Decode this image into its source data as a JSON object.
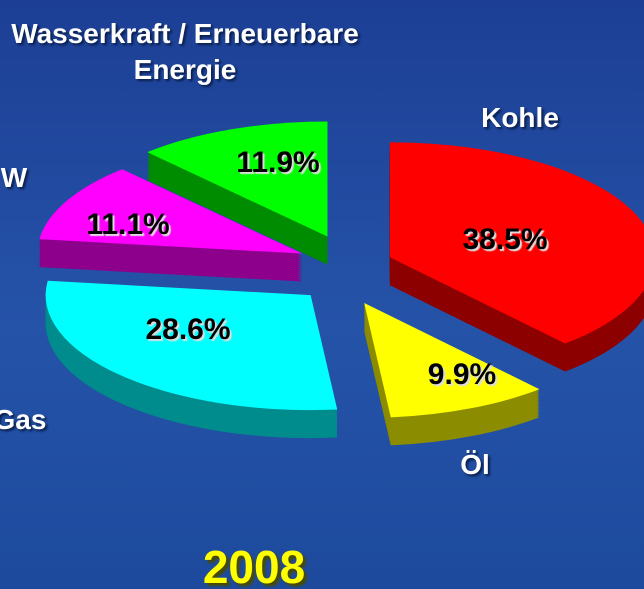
{
  "chart_data": {
    "type": "pie",
    "title": "2008",
    "categories": [
      "Kohle",
      "Öl",
      "Gas",
      "W",
      "Wasserkraft / Erneuerbare Energie"
    ],
    "values": [
      38.5,
      9.9,
      28.6,
      11.1,
      11.9
    ],
    "value_labels": [
      "38.5%",
      "9.9%",
      "28.6%",
      "11.1%",
      "11.9%"
    ],
    "colors": [
      "#ff0000",
      "#ffff00",
      "#00ffff",
      "#ff00ff",
      "#00ff00"
    ]
  }
}
